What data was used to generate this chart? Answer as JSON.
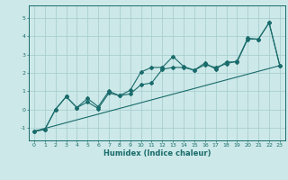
{
  "title": "",
  "xlabel": "Humidex (Indice chaleur)",
  "ylabel": "",
  "bg_color": "#cce8e8",
  "grid_color": "#aacfcf",
  "line_color": "#1a6b6b",
  "marker": "D",
  "marker_size": 2.0,
  "xlim": [
    -0.5,
    23.5
  ],
  "ylim": [
    -1.7,
    5.7
  ],
  "xticks": [
    0,
    1,
    2,
    3,
    4,
    5,
    6,
    7,
    8,
    9,
    10,
    11,
    12,
    13,
    14,
    15,
    16,
    17,
    18,
    19,
    20,
    21,
    22,
    23
  ],
  "yticks": [
    -1,
    0,
    1,
    2,
    3,
    4,
    5
  ],
  "series1": {
    "x": [
      0,
      1,
      2,
      3,
      4,
      5,
      6,
      7,
      8,
      9,
      10,
      11,
      12,
      13,
      14,
      15,
      16,
      17,
      18,
      19,
      20,
      21,
      22,
      23
    ],
    "y": [
      -1.2,
      -1.1,
      0.0,
      0.7,
      0.1,
      0.4,
      0.05,
      0.9,
      0.75,
      1.05,
      2.05,
      2.3,
      2.3,
      2.9,
      2.35,
      2.15,
      2.55,
      2.2,
      2.6,
      2.6,
      3.85,
      3.85,
      4.75,
      2.4
    ]
  },
  "series2": {
    "x": [
      0,
      1,
      2,
      3,
      4,
      5,
      6,
      7,
      8,
      9,
      10,
      11,
      12,
      13,
      14,
      15,
      16,
      17,
      18,
      19,
      20,
      21,
      22,
      23
    ],
    "y": [
      -1.2,
      -1.1,
      0.0,
      0.7,
      0.1,
      0.6,
      0.15,
      1.0,
      0.75,
      0.85,
      1.35,
      1.45,
      2.2,
      2.3,
      2.3,
      2.15,
      2.45,
      2.3,
      2.5,
      2.65,
      3.9,
      3.85,
      4.75,
      2.4
    ]
  },
  "series_linear": {
    "x": [
      0,
      23
    ],
    "y": [
      -1.2,
      2.4
    ]
  }
}
